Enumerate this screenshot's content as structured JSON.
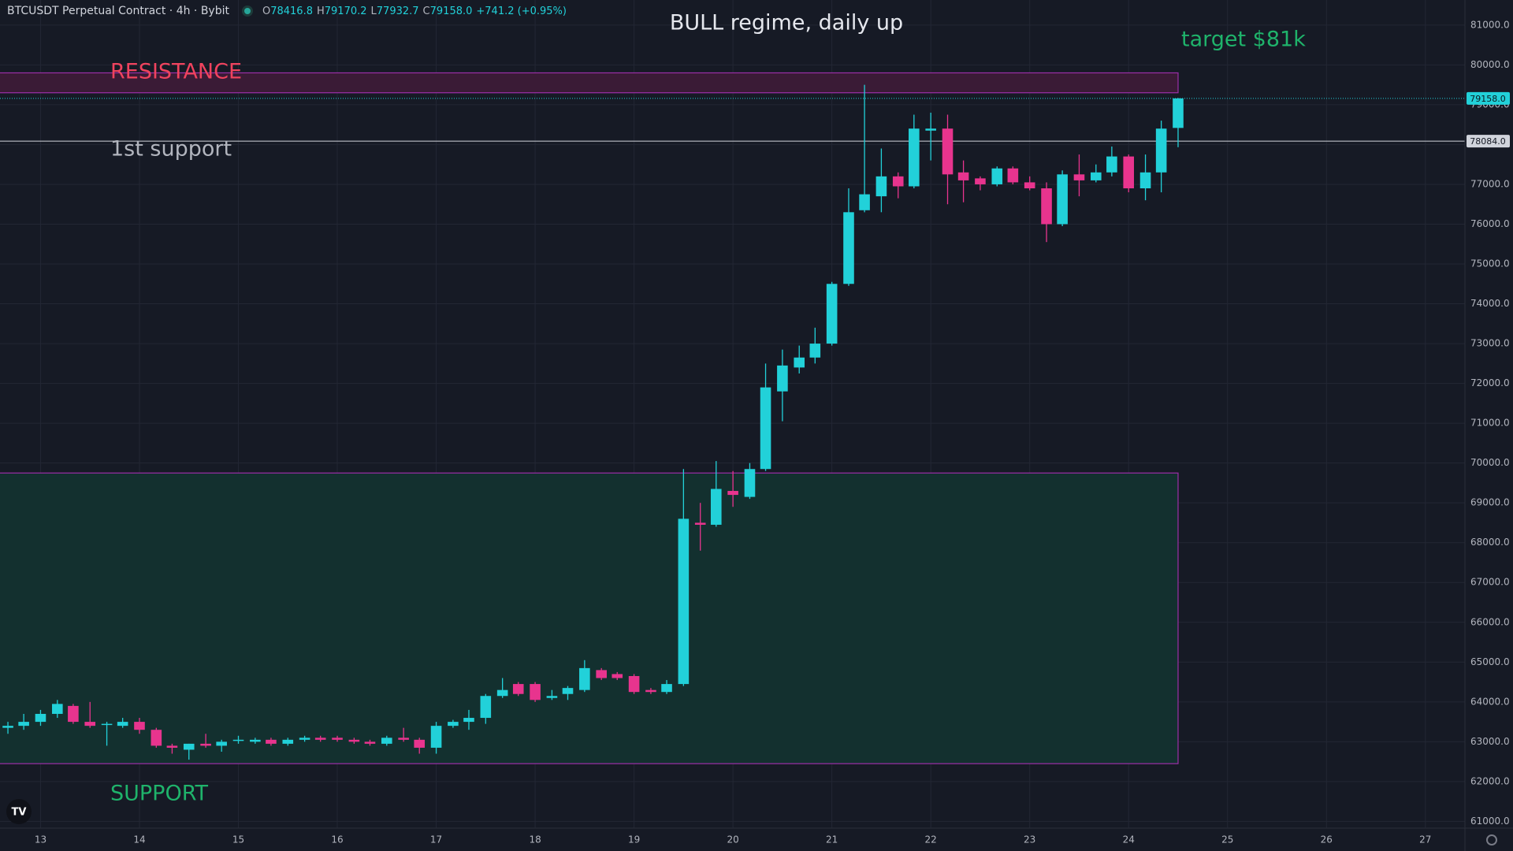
{
  "header": {
    "symbol": "BTCUSDT Perpetual Contract · 4h · Bybit",
    "ohlc": [
      {
        "label": "O",
        "value": "78416.8"
      },
      {
        "label": "H",
        "value": "79170.2"
      },
      {
        "label": "L",
        "value": "77932.7"
      },
      {
        "label": "C",
        "value": "79158.0"
      }
    ],
    "change": "+741.2 (+0.95%)"
  },
  "chart_data": {
    "type": "candlestick",
    "up_color": "#22d1d9",
    "down_color": "#e8348e",
    "grid": true,
    "xlim": [
      12.59,
      27.4
    ],
    "xticks": [
      13,
      14,
      15,
      16,
      17,
      18,
      19,
      20,
      21,
      22,
      23,
      24,
      25,
      26,
      27
    ],
    "ylim": [
      60830,
      81630
    ],
    "yticks": [
      {
        "value": 61000,
        "label": "61000.0"
      },
      {
        "value": 62000,
        "label": "62000.0"
      },
      {
        "value": 63000,
        "label": "63000.0"
      },
      {
        "value": 64000,
        "label": "64000.0"
      },
      {
        "value": 65000,
        "label": "65000.0"
      },
      {
        "value": 66000,
        "label": "66000.0"
      },
      {
        "value": 67000,
        "label": "67000.0"
      },
      {
        "value": 68000,
        "label": "68000.0"
      },
      {
        "value": 69000,
        "label": "69000.0"
      },
      {
        "value": 70000,
        "label": "70000.0"
      },
      {
        "value": 71000,
        "label": "71000.0"
      },
      {
        "value": 72000,
        "label": "72000.0"
      },
      {
        "value": 73000,
        "label": "73000.0"
      },
      {
        "value": 74000,
        "label": "74000.0"
      },
      {
        "value": 75000,
        "label": "75000.0"
      },
      {
        "value": 76000,
        "label": "76000.0"
      },
      {
        "value": 77000,
        "label": "77000.0"
      },
      {
        "value": 78000,
        "label": "78000.0"
      },
      {
        "value": 79000,
        "label": "79000.0"
      },
      {
        "value": 80000,
        "label": "80000.0"
      },
      {
        "value": 81000,
        "label": "81000.0"
      }
    ],
    "x": [
      12.67,
      12.83,
      13,
      13.17,
      13.33,
      13.5,
      13.67,
      13.83,
      14,
      14.17,
      14.33,
      14.5,
      14.67,
      14.83,
      15,
      15.17,
      15.33,
      15.5,
      15.67,
      15.83,
      16,
      16.17,
      16.33,
      16.5,
      16.67,
      16.83,
      17,
      17.17,
      17.33,
      17.5,
      17.67,
      17.83,
      18,
      18.17,
      18.33,
      18.5,
      18.67,
      18.83,
      19,
      19.17,
      19.33,
      19.5,
      19.67,
      19.83,
      20,
      20.17,
      20.33,
      20.5,
      20.67,
      20.83,
      21,
      21.17,
      21.33,
      21.5,
      21.67,
      21.83,
      22,
      22.17,
      22.33,
      22.5,
      22.67,
      22.83,
      23,
      23.17,
      23.33,
      23.5,
      23.67,
      23.83,
      24,
      24.17,
      24.33,
      24.5
    ],
    "open": [
      63350,
      63400,
      63500,
      63700,
      63900,
      63500,
      63450,
      63400,
      63500,
      63300,
      62900,
      62800,
      62950,
      62900,
      63050,
      63000,
      63050,
      62950,
      63050,
      63100,
      63100,
      63050,
      63000,
      62950,
      63100,
      63050,
      62850,
      63400,
      63500,
      63600,
      64150,
      64450,
      64450,
      64100,
      64200,
      64300,
      64800,
      64700,
      64650,
      64300,
      64250,
      64450,
      68500,
      68450,
      69300,
      69150,
      69850,
      71800,
      72400,
      72650,
      73000,
      74500,
      76350,
      76700,
      77200,
      76950,
      78350,
      78400,
      77300,
      77150,
      77000,
      77400,
      77050,
      76900,
      76000,
      77250,
      77100,
      77300,
      77700,
      76900,
      77300,
      78417
    ],
    "high": [
      63500,
      63700,
      63800,
      64050,
      63950,
      64000,
      63500,
      63600,
      63600,
      63350,
      62950,
      62950,
      63200,
      63050,
      63150,
      63100,
      63100,
      63100,
      63150,
      63150,
      63150,
      63100,
      63050,
      63150,
      63350,
      63100,
      63500,
      63550,
      63800,
      64200,
      64600,
      64500,
      64500,
      64300,
      64400,
      65050,
      64850,
      64750,
      64700,
      64350,
      64550,
      69850,
      69000,
      70050,
      69800,
      70000,
      72500,
      72850,
      72950,
      73400,
      74550,
      76900,
      79500,
      77900,
      77300,
      78750,
      78800,
      78750,
      77600,
      77200,
      77450,
      77450,
      77200,
      77050,
      77350,
      77750,
      77500,
      77950,
      77750,
      77750,
      78600,
      79170
    ],
    "low": [
      63200,
      63300,
      63400,
      63600,
      63450,
      63350,
      62900,
      63350,
      63200,
      62850,
      62700,
      62550,
      62850,
      62750,
      62950,
      62950,
      62900,
      62900,
      63000,
      63000,
      63000,
      62950,
      62900,
      62900,
      63000,
      62700,
      62700,
      63350,
      63300,
      63450,
      64100,
      64150,
      64000,
      64050,
      64050,
      64250,
      64550,
      64550,
      64200,
      64200,
      64200,
      64400,
      67800,
      68400,
      68900,
      69100,
      69800,
      71050,
      72250,
      72500,
      72950,
      74450,
      76300,
      76300,
      76650,
      76900,
      77600,
      76500,
      76550,
      76850,
      76950,
      77000,
      76850,
      75550,
      75950,
      76700,
      77050,
      77200,
      76800,
      76600,
      76800,
      77933
    ],
    "close": [
      63400,
      63500,
      63700,
      63950,
      63500,
      63400,
      63450,
      63500,
      63300,
      62900,
      62850,
      62950,
      62900,
      63000,
      63050,
      63050,
      62950,
      63050,
      63100,
      63050,
      63050,
      63000,
      62950,
      63100,
      63050,
      62850,
      63400,
      63500,
      63600,
      64150,
      64300,
      64200,
      64050,
      64150,
      64350,
      64850,
      64600,
      64600,
      64250,
      64250,
      64450,
      68600,
      68450,
      69350,
      69200,
      69850,
      71900,
      72450,
      72650,
      73000,
      74500,
      76300,
      76750,
      77200,
      76950,
      78400,
      78400,
      77250,
      77100,
      77000,
      77400,
      77050,
      76900,
      76000,
      77250,
      77100,
      77300,
      77700,
      76900,
      77300,
      78400,
      79158
    ],
    "zones": [
      {
        "from": 79300,
        "to": 79800,
        "x_end": 24.5,
        "fill": "#3a1b36",
        "border": "#9c2fa8"
      },
      {
        "from": 62450,
        "to": 69750,
        "x_end": 24.5,
        "fill": "#13302f",
        "border": "#9c2fa8"
      }
    ],
    "last_price": {
      "value": 79158,
      "label": "79158.0",
      "color": "#22d1d9"
    },
    "level": {
      "value": 78084,
      "label": "78084.0",
      "color": "#d1d4dc"
    },
    "annotations": [
      {
        "text": "RESISTANCE",
        "color": "#f0435e"
      },
      {
        "text": "1st support",
        "color": "#b2b5be"
      },
      {
        "text": "SUPPORT",
        "color": "#1fb36b"
      },
      {
        "text": "BULL regime, daily up",
        "color": "#e6e8ee"
      },
      {
        "text": "target $81k",
        "color": "#1fb36b"
      }
    ]
  }
}
